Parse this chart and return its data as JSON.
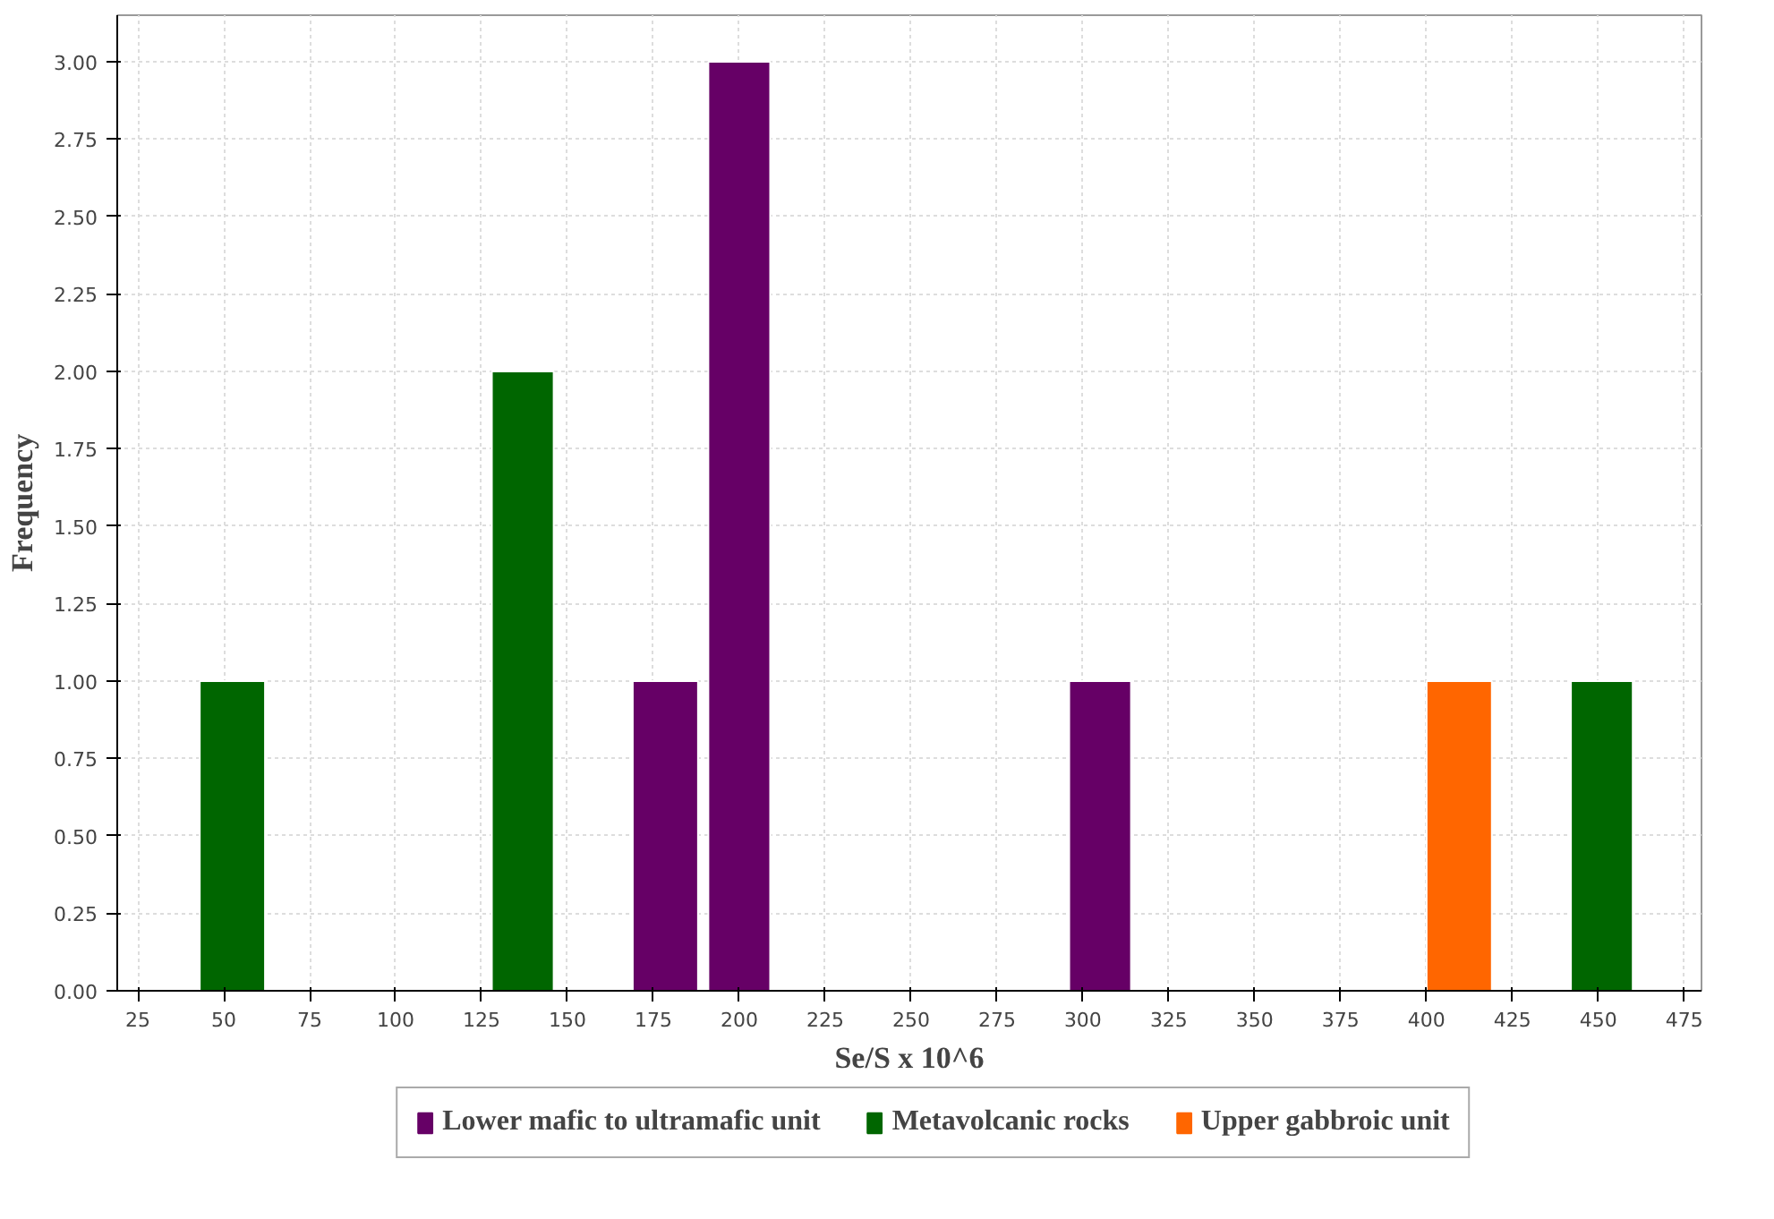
{
  "chart_data": {
    "type": "histogram",
    "xlabel": "Se/S x 10^6",
    "ylabel": "Frequency",
    "xlim": [
      19,
      480
    ],
    "ylim": [
      0,
      3.15
    ],
    "xticks": [
      25,
      50,
      75,
      100,
      125,
      150,
      175,
      200,
      225,
      250,
      275,
      300,
      325,
      350,
      375,
      400,
      425,
      450,
      475
    ],
    "yticks": [
      {
        "value": 0,
        "label": "0.00"
      },
      {
        "value": 0.25,
        "label": "0.25"
      },
      {
        "value": 0.5,
        "label": "0.50"
      },
      {
        "value": 0.75,
        "label": "0.75"
      },
      {
        "value": 1,
        "label": "1.00"
      },
      {
        "value": 1.25,
        "label": "1.25"
      },
      {
        "value": 1.5,
        "label": "1.50"
      },
      {
        "value": 1.75,
        "label": "1.75"
      },
      {
        "value": 2,
        "label": "2.00"
      },
      {
        "value": 2.25,
        "label": "2.25"
      },
      {
        "value": 2.5,
        "label": "2.50"
      },
      {
        "value": 2.75,
        "label": "2.75"
      },
      {
        "value": 3,
        "label": "3.00"
      }
    ],
    "grid": true,
    "legend": "bottom",
    "bins": [
      43,
      62,
      128,
      146,
      169,
      188,
      191,
      209,
      296,
      314,
      400,
      419,
      442,
      460
    ],
    "series": [
      {
        "name": "Lower mafic to ultramafic unit",
        "color": "#660066",
        "values": [
          0,
          0,
          0,
          0,
          1,
          0,
          3,
          0,
          1,
          0,
          0,
          0,
          0
        ]
      },
      {
        "name": "Metavolcanic rocks",
        "color": "#006600",
        "values": [
          1,
          0,
          2,
          0,
          0,
          0,
          0,
          0,
          0,
          0,
          0,
          0,
          1
        ]
      },
      {
        "name": "Upper gabbroic unit",
        "color": "#ff6600",
        "values": [
          0,
          0,
          0,
          0,
          0,
          0,
          0,
          0,
          0,
          0,
          1,
          0,
          0
        ]
      }
    ]
  }
}
